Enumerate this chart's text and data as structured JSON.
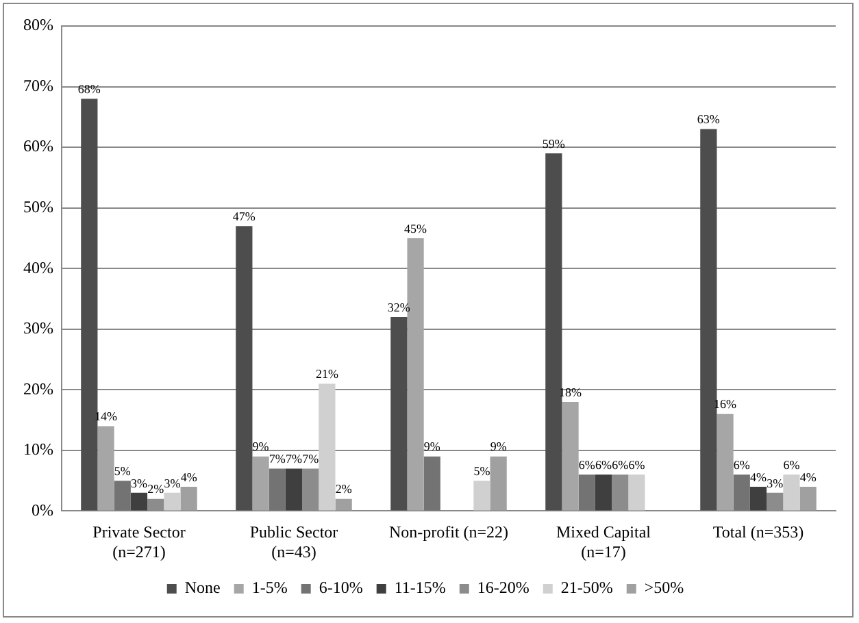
{
  "chart_data": {
    "type": "bar",
    "categories": [
      "Private Sector\n(n=271)",
      "Public Sector\n(n=43)",
      "Non-profit (n=22)",
      "Mixed Capital\n(n=17)",
      "Total (n=353)"
    ],
    "series": [
      {
        "name": "None",
        "color": "#4d4d4d",
        "values": [
          68,
          47,
          32,
          59,
          63
        ],
        "value_labels": [
          "68%",
          "47%",
          "32%",
          "59%",
          "63%"
        ]
      },
      {
        "name": "1-5%",
        "color": "#a6a6a6",
        "values": [
          14,
          9,
          45,
          18,
          16
        ],
        "value_labels": [
          "14%",
          "9%",
          "45%",
          "18%",
          "16%"
        ]
      },
      {
        "name": "6-10%",
        "color": "#737373",
        "values": [
          5,
          7,
          9,
          6,
          6
        ],
        "value_labels": [
          "5%",
          "7%",
          "9%",
          "6%",
          "6%"
        ]
      },
      {
        "name": "11-15%",
        "color": "#3f3f3f",
        "values": [
          3,
          7,
          null,
          6,
          4
        ],
        "value_labels": [
          "3%",
          "7%",
          null,
          "6%",
          "4%"
        ]
      },
      {
        "name": "16-20%",
        "color": "#8c8c8c",
        "values": [
          2,
          7,
          null,
          6,
          3
        ],
        "value_labels": [
          "2%",
          "7%",
          null,
          "6%",
          "3%"
        ]
      },
      {
        "name": "21-50%",
        "color": "#d0d0d0",
        "values": [
          3,
          21,
          5,
          6,
          6
        ],
        "value_labels": [
          "3%",
          "21%",
          "5%",
          "6%",
          "6%"
        ]
      },
      {
        "name": ">50%",
        "color": "#a0a0a0",
        "values": [
          4,
          2,
          9,
          null,
          4
        ],
        "value_labels": [
          "4%",
          "2%",
          "9%",
          null,
          "4%"
        ]
      }
    ],
    "ylim": [
      0,
      80
    ],
    "yticks": [
      {
        "value": 0,
        "label": "0%"
      },
      {
        "value": 10,
        "label": "10%"
      },
      {
        "value": 20,
        "label": "20%"
      },
      {
        "value": 30,
        "label": "30%"
      },
      {
        "value": 40,
        "label": "40%"
      },
      {
        "value": 50,
        "label": "50%"
      },
      {
        "value": 60,
        "label": "60%"
      },
      {
        "value": 70,
        "label": "70%"
      },
      {
        "value": 80,
        "label": "80%"
      }
    ],
    "grid": "y",
    "legend": "bottom"
  }
}
